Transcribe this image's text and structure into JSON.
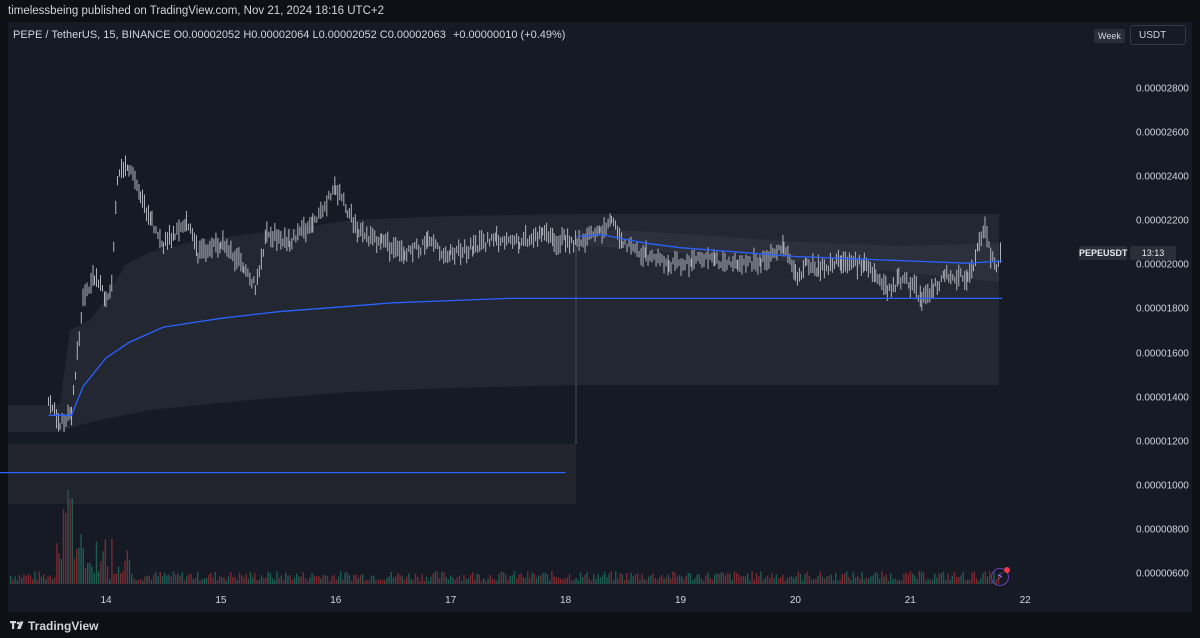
{
  "header": {
    "published_text": "timelessbeing published on TradingView.com, Nov 21, 2024 18:16 UTC+2"
  },
  "legend": {
    "symbol_line": "PEPE / TetherUS, 15, BINANCE",
    "o_label": "O",
    "o_value": "0.00002052",
    "h_label": "H",
    "h_value": "0.00002064",
    "l_label": "L",
    "l_value": "0.00002052",
    "c_label": "C",
    "c_value": "0.00002063",
    "change": "+0.00000010 (+0.49%)"
  },
  "controls": {
    "period_button": "Week",
    "currency_button": "USDT"
  },
  "price_axis": {
    "labels": [
      "0.00002800",
      "0.00002600",
      "0.00002400",
      "0.00002200",
      "0.00002000",
      "0.00001800",
      "0.00001600",
      "0.00001400",
      "0.00001200",
      "0.00001000",
      "0.00000800",
      "0.00000600"
    ]
  },
  "time_axis": {
    "labels": [
      "14",
      "15",
      "16",
      "17",
      "18",
      "19",
      "20",
      "21",
      "22"
    ]
  },
  "price_badge": {
    "symbol": "PEPEUSDT",
    "countdown": "13:13"
  },
  "footer": {
    "brand": "TradingView"
  },
  "colors": {
    "background": "#161a25",
    "vwap_line": "#2962ff",
    "band_fill": "#2a2e39",
    "candle": "#b2b5be",
    "volume_up": "#1f5c52",
    "volume_down": "#7a2a33"
  },
  "icons": {
    "alert": "lightning-alert-icon",
    "logo": "tradingview-logo-icon"
  },
  "chart_data": {
    "type": "candlestick",
    "title": "PEPE / TetherUS, 15, BINANCE",
    "x_labels": [
      "14",
      "15",
      "16",
      "17",
      "18",
      "19",
      "20",
      "21",
      "22"
    ],
    "ylim": [
      5.6e-06,
      2.9e-05
    ],
    "series": [
      {
        "name": "price",
        "x": [
          13.5,
          13.6,
          13.7,
          13.75,
          13.8,
          13.9,
          14.0,
          14.05,
          14.1,
          14.2,
          14.3,
          14.4,
          14.5,
          14.6,
          14.7,
          14.8,
          15.0,
          15.2,
          15.3,
          15.4,
          15.6,
          15.8,
          16.0,
          16.1,
          16.2,
          16.4,
          16.6,
          16.8,
          17.0,
          17.2,
          17.4,
          17.6,
          17.8,
          17.9,
          18.0,
          18.1,
          18.3,
          18.4,
          18.5,
          18.7,
          18.9,
          19.1,
          19.3,
          19.5,
          19.7,
          19.9,
          20.0,
          20.1,
          20.2,
          20.4,
          20.6,
          20.7,
          20.8,
          20.9,
          21.0,
          21.1,
          21.2,
          21.3,
          21.5,
          21.55,
          21.6,
          21.65,
          21.7,
          21.75,
          21.8
        ],
        "values": [
          1.4e-05,
          1.28e-05,
          1.33e-05,
          1.6e-05,
          1.85e-05,
          1.95e-05,
          1.85e-05,
          1.9e-05,
          2.4e-05,
          2.45e-05,
          2.3e-05,
          2.2e-05,
          2.1e-05,
          2.15e-05,
          2.2e-05,
          2.05e-05,
          2.1e-05,
          2e-05,
          1.9e-05,
          2.15e-05,
          2.1e-05,
          2.2e-05,
          2.35e-05,
          2.25e-05,
          2.15e-05,
          2.1e-05,
          2.05e-05,
          2.1e-05,
          2.05e-05,
          2.08e-05,
          2.12e-05,
          2.1e-05,
          2.15e-05,
          2.1e-05,
          2.12e-05,
          2.1e-05,
          2.15e-05,
          2.2e-05,
          2.1e-05,
          2.05e-05,
          2e-05,
          2.02e-05,
          2.03e-05,
          2e-05,
          2.02e-05,
          2.08e-05,
          1.95e-05,
          2e-05,
          1.98e-05,
          2.02e-05,
          2e-05,
          1.95e-05,
          1.88e-05,
          1.93e-05,
          1.92e-05,
          1.85e-05,
          1.9e-05,
          1.95e-05,
          1.95e-05,
          2e-05,
          2.12e-05,
          2.15e-05,
          2.05e-05,
          2e-05,
          2.06e-05
        ]
      },
      {
        "name": "vwap_anchored",
        "x": [
          13.5,
          13.7,
          13.8,
          14.0,
          14.2,
          14.5,
          15.0,
          15.5,
          16.0,
          16.5,
          17.0,
          17.5,
          18.0,
          18.5,
          19.0,
          19.5,
          20.0,
          20.5,
          21.0,
          21.5,
          21.8
        ],
        "values": [
          1.32e-05,
          1.32e-05,
          1.45e-05,
          1.58e-05,
          1.65e-05,
          1.72e-05,
          1.76e-05,
          1.79e-05,
          1.81e-05,
          1.83e-05,
          1.84e-05,
          1.85e-05,
          1.85e-05,
          1.85e-05,
          1.85e-05,
          1.85e-05,
          1.85e-05,
          1.85e-05,
          1.85e-05,
          1.85e-05,
          1.85e-05
        ]
      },
      {
        "name": "vwap_session",
        "x": [
          18.1,
          18.3,
          18.5,
          18.7,
          19.0,
          19.5,
          20.0,
          20.5,
          21.0,
          21.5,
          21.8
        ],
        "values": [
          2.13e-05,
          2.14e-05,
          2.12e-05,
          2.1e-05,
          2.08e-05,
          2.06e-05,
          2.04e-05,
          2.03e-05,
          2.02e-05,
          2.01e-05,
          2.02e-05
        ]
      },
      {
        "name": "vwap_prior",
        "x": [
          13.0,
          18.0
        ],
        "values": [
          1.06e-05,
          1.06e-05
        ]
      }
    ]
  }
}
